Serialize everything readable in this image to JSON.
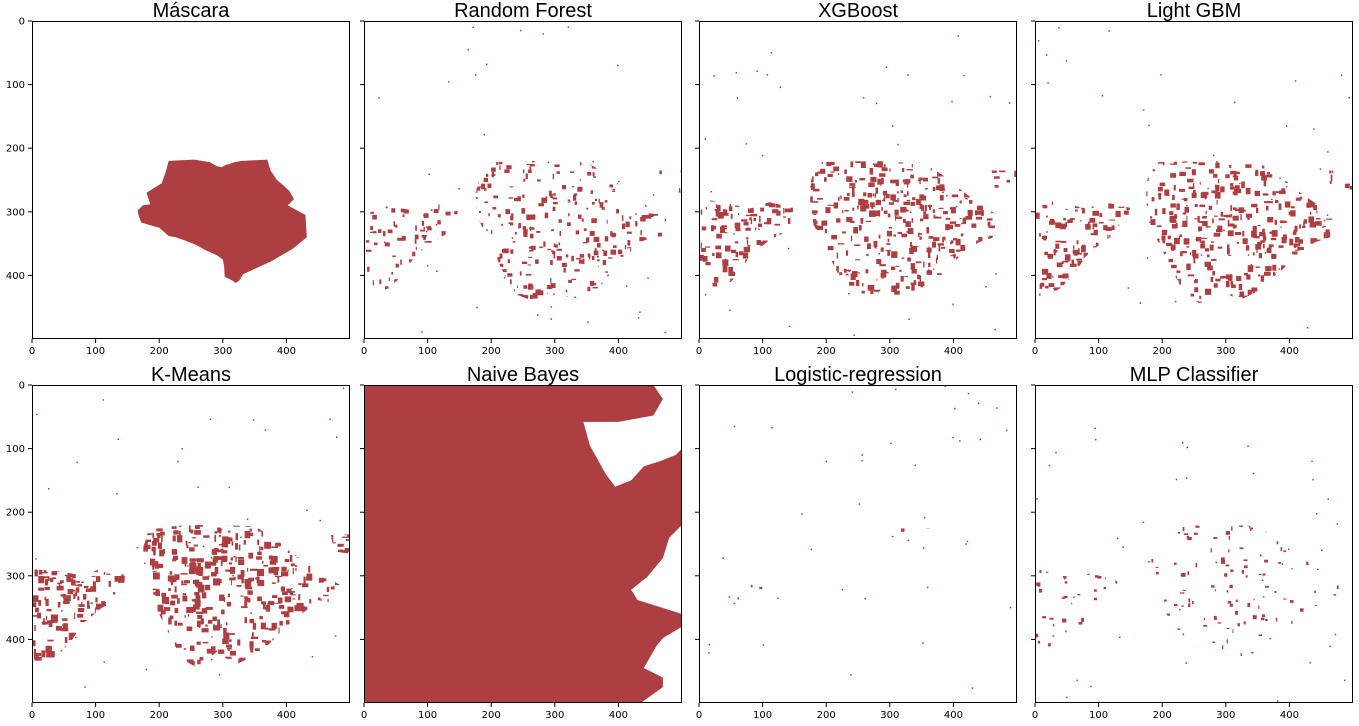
{
  "chart_data": {
    "type": "heatmap",
    "mask_color": "#ad3f42",
    "background_color": "#ffffff",
    "grid": false,
    "xlim": [
      0,
      500
    ],
    "ylim": [
      500,
      0
    ],
    "xticks": [
      "0",
      "100",
      "200",
      "300",
      "400"
    ],
    "yticks": [
      "0",
      "100",
      "200",
      "300",
      "400"
    ],
    "panels": [
      {
        "title": "Máscara",
        "shape": "solid",
        "polygons": [
          [
            [
              215,
              220
            ],
            [
              255,
              218
            ],
            [
              280,
              222
            ],
            [
              290,
              228
            ],
            [
              298,
              230
            ],
            [
              305,
              226
            ],
            [
              310,
              225
            ],
            [
              318,
              222
            ],
            [
              330,
              220
            ],
            [
              370,
              218
            ],
            [
              375,
              235
            ],
            [
              385,
              250
            ],
            [
              395,
              258
            ],
            [
              405,
              268
            ],
            [
              412,
              280
            ],
            [
              402,
              290
            ],
            [
              430,
              305
            ],
            [
              432,
              340
            ],
            [
              410,
              358
            ],
            [
              376,
              378
            ],
            [
              354,
              388
            ],
            [
              332,
              398
            ],
            [
              326,
              408
            ],
            [
              320,
              412
            ],
            [
              315,
              408
            ],
            [
              303,
              402
            ],
            [
              302,
              386
            ],
            [
              300,
              375
            ],
            [
              290,
              368
            ],
            [
              272,
              360
            ],
            [
              258,
              352
            ],
            [
              240,
              345
            ],
            [
              226,
              340
            ],
            [
              215,
              338
            ],
            [
              200,
              325
            ],
            [
              182,
              320
            ],
            [
              172,
              317
            ],
            [
              168,
              307
            ],
            [
              166,
              298
            ],
            [
              174,
              290
            ],
            [
              186,
              288
            ],
            [
              180,
              270
            ],
            [
              204,
              255
            ],
            [
              210,
              238
            ]
          ]
        ]
      },
      {
        "title": "Random Forest",
        "shape": "speckle",
        "density": 0.45,
        "polygons": [
          [
            [
              190,
              222
            ],
            [
              280,
              220
            ],
            [
              350,
              222
            ],
            [
              380,
              240
            ],
            [
              420,
              272
            ],
            [
              460,
              302
            ],
            [
              480,
              312
            ],
            [
              470,
              338
            ],
            [
              440,
              345
            ],
            [
              420,
              362
            ],
            [
              400,
              380
            ],
            [
              370,
              420
            ],
            [
              330,
              440
            ],
            [
              300,
              422
            ],
            [
              270,
              442
            ],
            [
              240,
              430
            ],
            [
              222,
              402
            ],
            [
              205,
              365
            ],
            [
              188,
              330
            ],
            [
              178,
              305
            ],
            [
              175,
              270
            ]
          ],
          [
            [
              0,
              290
            ],
            [
              40,
              292
            ],
            [
              80,
              298
            ],
            [
              110,
              285
            ],
            [
              150,
              292
            ],
            [
              140,
              330
            ],
            [
              110,
              345
            ],
            [
              80,
              370
            ],
            [
              60,
              400
            ],
            [
              40,
              420
            ],
            [
              10,
              430
            ],
            [
              0,
              430
            ]
          ],
          [
            [
              460,
              235
            ],
            [
              500,
              235
            ],
            [
              500,
              270
            ],
            [
              465,
              268
            ]
          ]
        ]
      },
      {
        "title": "XGBoost",
        "shape": "speckle",
        "density": 0.62,
        "polygons": [
          [
            [
              185,
              222
            ],
            [
              280,
              220
            ],
            [
              350,
              222
            ],
            [
              380,
              240
            ],
            [
              420,
              272
            ],
            [
              460,
              300
            ],
            [
              485,
              312
            ],
            [
              470,
              338
            ],
            [
              440,
              348
            ],
            [
              410,
              370
            ],
            [
              390,
              390
            ],
            [
              360,
              420
            ],
            [
              320,
              440
            ],
            [
              290,
              420
            ],
            [
              260,
              445
            ],
            [
              235,
              430
            ],
            [
              220,
              400
            ],
            [
              200,
              360
            ],
            [
              180,
              320
            ],
            [
              175,
              285
            ],
            [
              175,
              255
            ]
          ],
          [
            [
              0,
              280
            ],
            [
              40,
              285
            ],
            [
              80,
              295
            ],
            [
              110,
              285
            ],
            [
              155,
              295
            ],
            [
              140,
              330
            ],
            [
              110,
              345
            ],
            [
              80,
              370
            ],
            [
              60,
              400
            ],
            [
              40,
              420
            ],
            [
              5,
              440
            ],
            [
              0,
              440
            ]
          ],
          [
            [
              460,
              235
            ],
            [
              500,
              235
            ],
            [
              500,
              265
            ],
            [
              465,
              262
            ]
          ]
        ]
      },
      {
        "title": "Light GBM",
        "shape": "speckle",
        "density": 0.62,
        "polygons": [
          [
            [
              185,
              222
            ],
            [
              280,
              220
            ],
            [
              350,
              222
            ],
            [
              380,
              240
            ],
            [
              420,
              272
            ],
            [
              460,
              300
            ],
            [
              485,
              312
            ],
            [
              470,
              338
            ],
            [
              440,
              348
            ],
            [
              410,
              370
            ],
            [
              390,
              390
            ],
            [
              360,
              420
            ],
            [
              320,
              440
            ],
            [
              290,
              420
            ],
            [
              260,
              445
            ],
            [
              235,
              430
            ],
            [
              220,
              400
            ],
            [
              200,
              360
            ],
            [
              180,
              320
            ],
            [
              175,
              285
            ],
            [
              175,
              255
            ]
          ],
          [
            [
              0,
              280
            ],
            [
              40,
              285
            ],
            [
              80,
              295
            ],
            [
              110,
              285
            ],
            [
              155,
              295
            ],
            [
              140,
              330
            ],
            [
              110,
              345
            ],
            [
              80,
              370
            ],
            [
              60,
              400
            ],
            [
              40,
              420
            ],
            [
              5,
              440
            ],
            [
              0,
              440
            ]
          ],
          [
            [
              460,
              235
            ],
            [
              500,
              235
            ],
            [
              500,
              265
            ],
            [
              465,
              262
            ]
          ]
        ]
      },
      {
        "title": "K-Means",
        "shape": "speckle",
        "density": 0.72,
        "polygons": [
          [
            [
              185,
              222
            ],
            [
              280,
              220
            ],
            [
              350,
              222
            ],
            [
              380,
              240
            ],
            [
              420,
              272
            ],
            [
              460,
              300
            ],
            [
              485,
              315
            ],
            [
              470,
              340
            ],
            [
              440,
              348
            ],
            [
              410,
              370
            ],
            [
              390,
              390
            ],
            [
              360,
              420
            ],
            [
              320,
              440
            ],
            [
              290,
              420
            ],
            [
              260,
              445
            ],
            [
              235,
              430
            ],
            [
              220,
              400
            ],
            [
              200,
              360
            ],
            [
              180,
              320
            ],
            [
              175,
              285
            ],
            [
              175,
              255
            ]
          ],
          [
            [
              0,
              290
            ],
            [
              40,
              292
            ],
            [
              80,
              300
            ],
            [
              110,
              288
            ],
            [
              150,
              300
            ],
            [
              140,
              335
            ],
            [
              110,
              350
            ],
            [
              80,
              375
            ],
            [
              60,
              405
            ],
            [
              40,
              425
            ],
            [
              5,
              445
            ],
            [
              0,
              445
            ]
          ],
          [
            [
              470,
              235
            ],
            [
              500,
              235
            ],
            [
              500,
              265
            ],
            [
              475,
              262
            ]
          ]
        ]
      },
      {
        "title": "Naive Bayes",
        "shape": "solid",
        "polygons": [
          [
            [
              0,
              0
            ],
            [
              455,
              0
            ],
            [
              470,
              22
            ],
            [
              455,
              48
            ],
            [
              400,
              58
            ],
            [
              345,
              58
            ],
            [
              355,
              95
            ],
            [
              380,
              140
            ],
            [
              395,
              160
            ],
            [
              420,
              150
            ],
            [
              440,
              128
            ],
            [
              465,
              120
            ],
            [
              490,
              110
            ],
            [
              500,
              100
            ],
            [
              500,
              220
            ],
            [
              480,
              240
            ],
            [
              470,
              272
            ],
            [
              445,
              302
            ],
            [
              425,
              318
            ],
            [
              420,
              322
            ],
            [
              430,
              338
            ],
            [
              500,
              360
            ],
            [
              500,
              380
            ],
            [
              470,
              398
            ],
            [
              460,
              410
            ],
            [
              440,
              445
            ],
            [
              470,
              460
            ],
            [
              470,
              475
            ],
            [
              435,
              500
            ],
            [
              0,
              500
            ]
          ]
        ]
      },
      {
        "title": "Logistic-regression",
        "shape": "speckle",
        "density": 0.12,
        "polygons": [
          [
            [
              40,
              305
            ],
            [
              80,
              310
            ],
            [
              120,
              315
            ],
            [
              110,
              345
            ],
            [
              80,
              355
            ],
            [
              50,
              350
            ]
          ],
          [
            [
              0,
              340
            ],
            [
              30,
              345
            ],
            [
              30,
              360
            ],
            [
              0,
              360
            ]
          ],
          [
            [
              260,
              225
            ],
            [
              380,
              225
            ],
            [
              360,
              262
            ],
            [
              300,
              262
            ],
            [
              260,
              258
            ]
          ]
        ]
      },
      {
        "title": "MLP Classifier",
        "shape": "speckle",
        "density": 0.22,
        "polygons": [
          [
            [
              185,
              222
            ],
            [
              280,
              218
            ],
            [
              350,
              222
            ],
            [
              380,
              240
            ],
            [
              420,
              272
            ],
            [
              460,
              300
            ],
            [
              480,
              315
            ],
            [
              470,
              338
            ],
            [
              440,
              348
            ],
            [
              410,
              370
            ],
            [
              390,
              390
            ],
            [
              360,
              420
            ],
            [
              320,
              435
            ],
            [
              290,
              420
            ],
            [
              260,
              425
            ],
            [
              240,
              400
            ],
            [
              220,
              380
            ],
            [
              200,
              350
            ],
            [
              180,
              320
            ],
            [
              175,
              285
            ],
            [
              175,
              255
            ]
          ],
          [
            [
              0,
              290
            ],
            [
              40,
              292
            ],
            [
              80,
              298
            ],
            [
              110,
              290
            ],
            [
              130,
              310
            ],
            [
              110,
              345
            ],
            [
              80,
              370
            ],
            [
              60,
              395
            ],
            [
              40,
              410
            ],
            [
              10,
              430
            ],
            [
              0,
              430
            ]
          ]
        ]
      }
    ]
  }
}
